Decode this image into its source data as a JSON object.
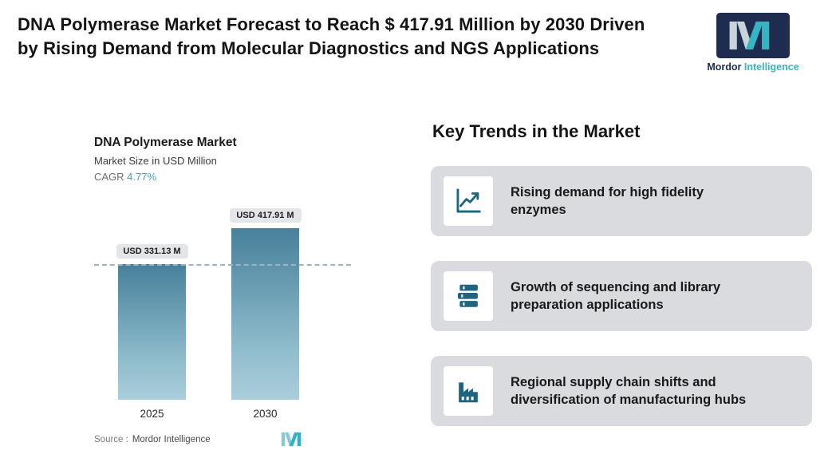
{
  "header": {
    "title": "DNA Polymerase Market Forecast to Reach $ 417.91 Million by 2030 Driven by Rising Demand from Molecular Diagnostics and NGS Applications",
    "logo": {
      "bold": "Mordor",
      "regular": " Intelligence"
    }
  },
  "chart": {
    "title": "DNA Polymerase Market",
    "subtitle": "Market Size in USD Million",
    "cagr_label": "CAGR ",
    "cagr_value": "4.77%",
    "source_label": "Source :",
    "source_value": "Mordor Intelligence"
  },
  "chart_data": {
    "type": "bar",
    "title": "DNA Polymerase Market",
    "ylabel": "Market Size in USD Million",
    "cagr": "4.77%",
    "categories": [
      "2025",
      "2030"
    ],
    "values": [
      331.13,
      417.91
    ],
    "bar_labels": [
      "USD 331.13 M",
      "USD 417.91 M"
    ],
    "ylim": [
      0,
      440
    ],
    "reference_line_value": 331.13,
    "grid": false,
    "legend": false
  },
  "trends": {
    "heading": "Key Trends in the Market",
    "items": [
      {
        "icon": "line-chart-icon",
        "text": "Rising demand for high fidelity enzymes"
      },
      {
        "icon": "books-stack-icon",
        "text": "Growth of sequencing and library preparation applications"
      },
      {
        "icon": "factory-icon",
        "text": "Regional supply chain shifts and diversification of manufacturing hubs"
      }
    ]
  },
  "colors": {
    "accent_teal": "#35b4c1",
    "navy": "#1e2c4f",
    "icon_teal": "#1f6480",
    "card_bg": "#d9dbdf",
    "bar_top": "#47809a",
    "bar_bottom": "#abceda",
    "cagr_teal": "#4f9fb5"
  }
}
